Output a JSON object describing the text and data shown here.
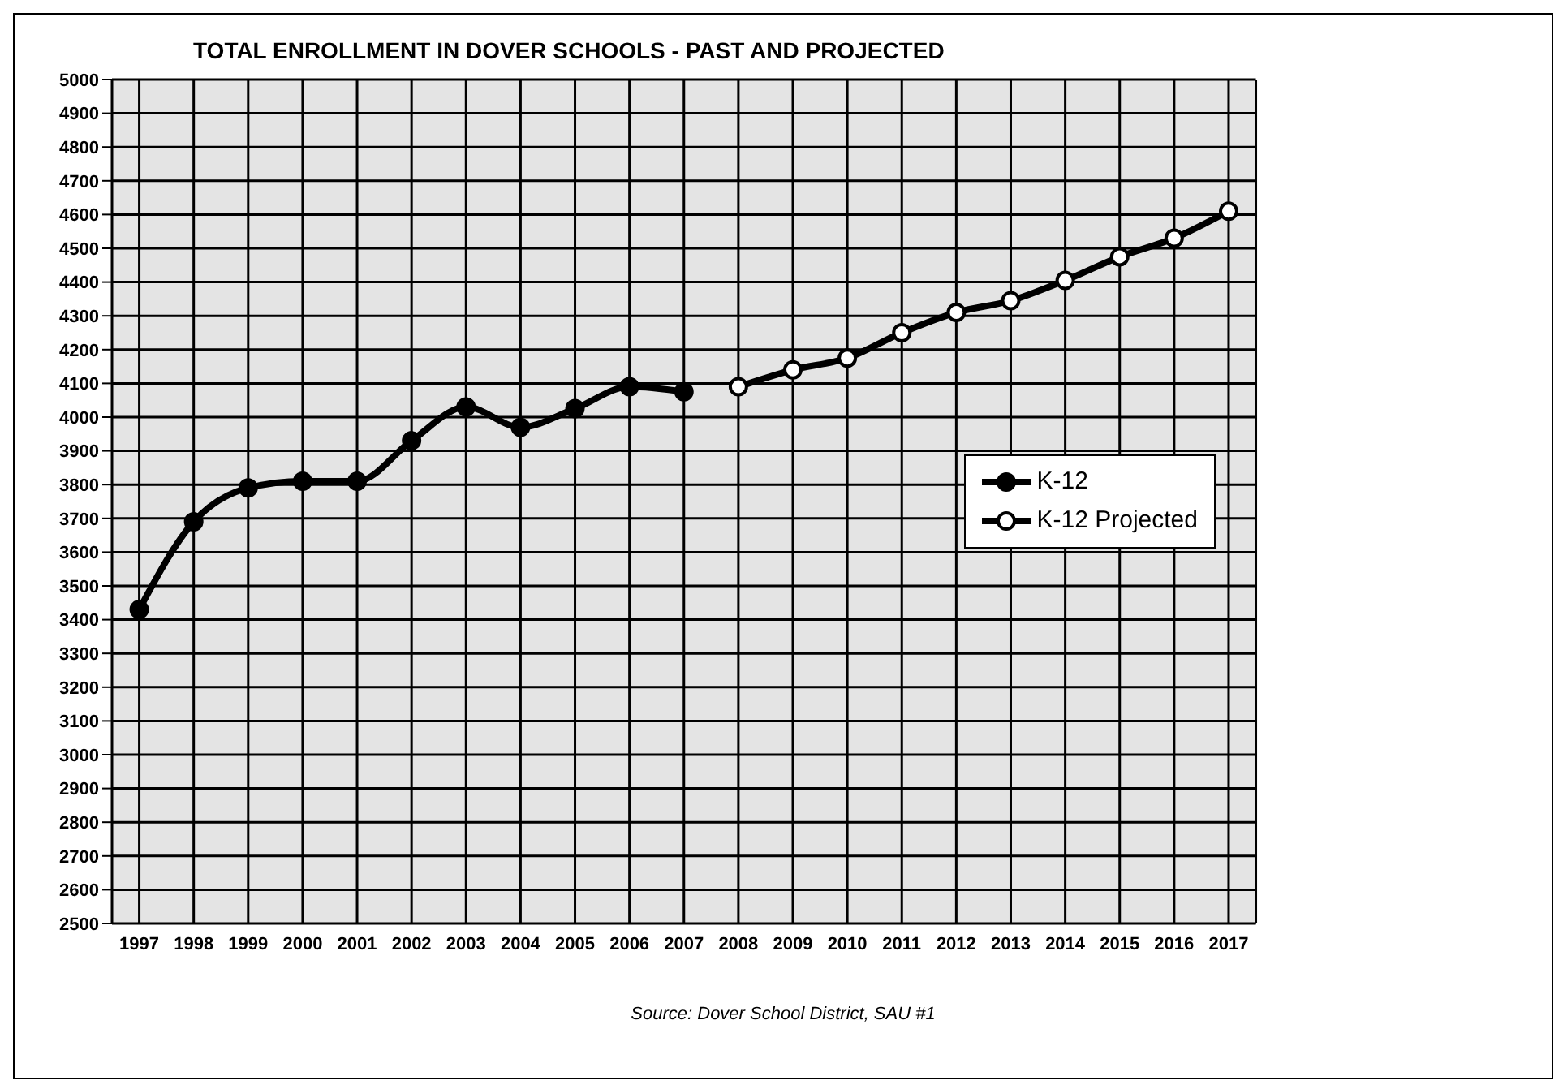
{
  "chart_data": {
    "type": "line",
    "title": "TOTAL ENROLLMENT IN DOVER SCHOOLS - PAST AND PROJECTED",
    "categories": [
      "1997",
      "1998",
      "1999",
      "2000",
      "2001",
      "2002",
      "2003",
      "2004",
      "2005",
      "2006",
      "2007",
      "2008",
      "2009",
      "2010",
      "2011",
      "2012",
      "2013",
      "2014",
      "2015",
      "2016",
      "2017"
    ],
    "series": [
      {
        "name": "K-12",
        "color": "#000000",
        "values": [
          3430,
          3690,
          3790,
          3810,
          3810,
          3930,
          4030,
          3970,
          4025,
          4090,
          4075,
          null,
          null,
          null,
          null,
          null,
          null,
          null,
          null,
          null,
          null
        ]
      },
      {
        "name": "K-12 Projected",
        "color": "#000000",
        "values": [
          null,
          null,
          null,
          null,
          null,
          null,
          null,
          null,
          null,
          null,
          null,
          4090,
          4140,
          4175,
          4250,
          4310,
          4345,
          4405,
          4475,
          4530,
          4610
        ]
      }
    ],
    "ylim": [
      2500,
      5000
    ],
    "yticks": [
      2500,
      2600,
      2700,
      2800,
      2900,
      3000,
      3100,
      3200,
      3300,
      3400,
      3500,
      3600,
      3700,
      3800,
      3900,
      4000,
      4100,
      4200,
      4300,
      4400,
      4500,
      4600,
      4700,
      4800,
      4900,
      5000
    ],
    "grid": true,
    "legend": "right",
    "marker": "circle",
    "line_style": "solid",
    "annotations": [
      "Source:  Dover School District, SAU #1"
    ]
  }
}
